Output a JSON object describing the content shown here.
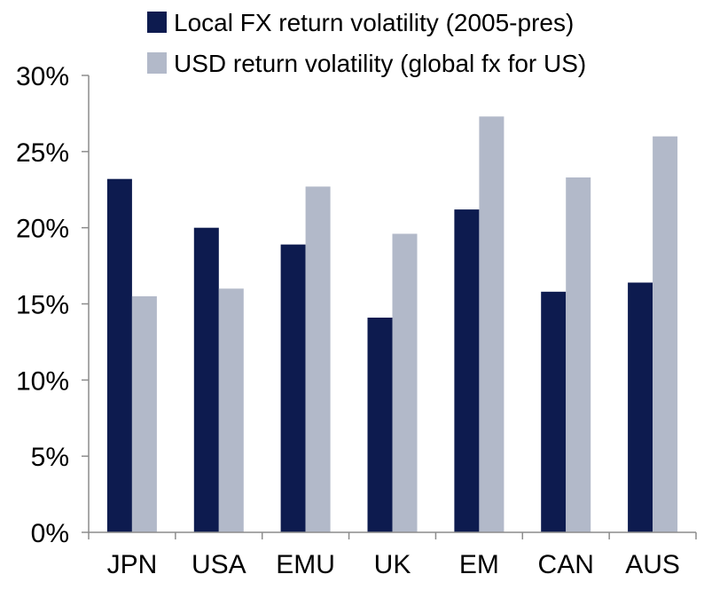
{
  "chart_data": {
    "type": "bar",
    "categories": [
      "JPN",
      "USA",
      "EMU",
      "UK",
      "EM",
      "CAN",
      "AUS"
    ],
    "series": [
      {
        "name": "Local FX return volatility (2005-pres)",
        "color": "#0d1b4f",
        "values": [
          23.2,
          20.0,
          18.9,
          14.1,
          21.2,
          15.8,
          16.4
        ]
      },
      {
        "name": "USD return volatility (global fx for US)",
        "color": "#b2b9c9",
        "values": [
          15.5,
          16.0,
          22.7,
          19.6,
          27.3,
          23.3,
          26.0
        ]
      }
    ],
    "ylim": [
      0,
      30
    ],
    "yticks": [
      0,
      5,
      10,
      15,
      20,
      25,
      30
    ],
    "ytick_labels": [
      "0%",
      "5%",
      "10%",
      "15%",
      "20%",
      "25%",
      "30%"
    ],
    "grid": false,
    "legend_position": "top"
  }
}
